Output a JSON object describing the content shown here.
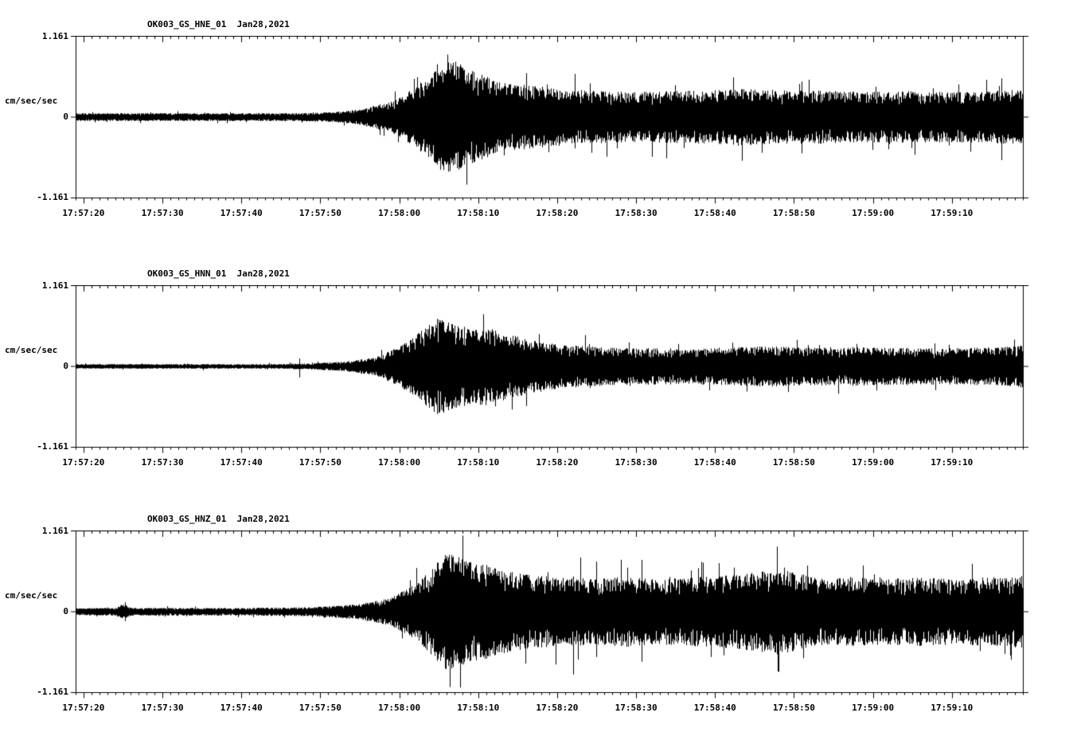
{
  "chart_data": {
    "type": "line",
    "subtype": "seismogram-3-component",
    "station": "OK003",
    "network": "GS",
    "date": "Jan28,2021",
    "units": "cm/sec/sec",
    "color": "#000000",
    "background": "#ffffff",
    "duration_s": 120,
    "start_time": "17:57:19",
    "x_axis": {
      "first_major_offset_s": 1,
      "major_interval_s": 10,
      "minor_interval_s": 1,
      "tick_labels": [
        "17:57:20",
        "17:57:30",
        "17:57:40",
        "17:57:50",
        "17:58:00",
        "17:58:10",
        "17:58:20",
        "17:58:30",
        "17:58:40",
        "17:58:50",
        "17:59:00",
        "17:59:10"
      ]
    },
    "y_axis": {
      "label": "cm/sec/sec",
      "top_label": "1.161",
      "zero_label": "0",
      "bottom_label": "-1.161",
      "ymax": 1.161,
      "ymin": -1.161
    },
    "panels": [
      {
        "id": "HNE",
        "title": "OK003_GS_HNE_01  Jan28,2021",
        "seed": 1101,
        "envelope": [
          [
            0,
            0.05
          ],
          [
            28,
            0.05
          ],
          [
            32,
            0.06
          ],
          [
            36,
            0.1
          ],
          [
            40,
            0.2
          ],
          [
            43,
            0.38
          ],
          [
            45,
            0.55
          ],
          [
            46,
            0.68
          ],
          [
            48,
            0.72
          ],
          [
            50,
            0.6
          ],
          [
            53,
            0.48
          ],
          [
            56,
            0.42
          ],
          [
            60,
            0.38
          ],
          [
            65,
            0.34
          ],
          [
            70,
            0.32
          ],
          [
            75,
            0.33
          ],
          [
            80,
            0.34
          ],
          [
            85,
            0.36
          ],
          [
            90,
            0.34
          ],
          [
            95,
            0.34
          ],
          [
            100,
            0.32
          ],
          [
            105,
            0.33
          ],
          [
            110,
            0.32
          ],
          [
            115,
            0.33
          ],
          [
            120,
            0.35
          ]
        ],
        "spikes": [
          [
            63.2,
            0.55,
            0.4
          ]
        ]
      },
      {
        "id": "HNN",
        "title": "OK003_GS_HNN_01  Jan28,2021",
        "seed": 2202,
        "envelope": [
          [
            0,
            0.03
          ],
          [
            26,
            0.03
          ],
          [
            30,
            0.04
          ],
          [
            34,
            0.06
          ],
          [
            38,
            0.12
          ],
          [
            41,
            0.25
          ],
          [
            43,
            0.4
          ],
          [
            45,
            0.55
          ],
          [
            46,
            0.62
          ],
          [
            48,
            0.55
          ],
          [
            50,
            0.48
          ],
          [
            52,
            0.5
          ],
          [
            54,
            0.44
          ],
          [
            57,
            0.36
          ],
          [
            60,
            0.3
          ],
          [
            64,
            0.26
          ],
          [
            68,
            0.24
          ],
          [
            75,
            0.23
          ],
          [
            82,
            0.24
          ],
          [
            88,
            0.26
          ],
          [
            92,
            0.24
          ],
          [
            98,
            0.25
          ],
          [
            104,
            0.24
          ],
          [
            110,
            0.23
          ],
          [
            115,
            0.24
          ],
          [
            120,
            0.27
          ]
        ],
        "spikes": [
          [
            28.3,
            0.1,
            0.14
          ]
        ]
      },
      {
        "id": "HNZ",
        "title": "OK003_GS_HNZ_01  Jan28,2021",
        "seed": 3303,
        "envelope": [
          [
            0,
            0.045
          ],
          [
            5,
            0.05
          ],
          [
            6,
            0.1
          ],
          [
            7,
            0.05
          ],
          [
            20,
            0.05
          ],
          [
            30,
            0.06
          ],
          [
            36,
            0.1
          ],
          [
            40,
            0.18
          ],
          [
            43,
            0.35
          ],
          [
            45,
            0.55
          ],
          [
            47,
            0.75
          ],
          [
            49,
            0.68
          ],
          [
            52,
            0.6
          ],
          [
            55,
            0.52
          ],
          [
            58,
            0.46
          ],
          [
            62,
            0.44
          ],
          [
            66,
            0.42
          ],
          [
            70,
            0.45
          ],
          [
            74,
            0.42
          ],
          [
            78,
            0.44
          ],
          [
            82,
            0.46
          ],
          [
            86,
            0.5
          ],
          [
            89,
            0.55
          ],
          [
            92,
            0.48
          ],
          [
            95,
            0.42
          ],
          [
            99,
            0.44
          ],
          [
            103,
            0.42
          ],
          [
            107,
            0.44
          ],
          [
            111,
            0.42
          ],
          [
            115,
            0.45
          ],
          [
            120,
            0.46
          ]
        ],
        "spikes": [
          [
            6.3,
            0.12,
            0.12
          ],
          [
            63.0,
            0.45,
            0.8
          ]
        ]
      }
    ]
  }
}
